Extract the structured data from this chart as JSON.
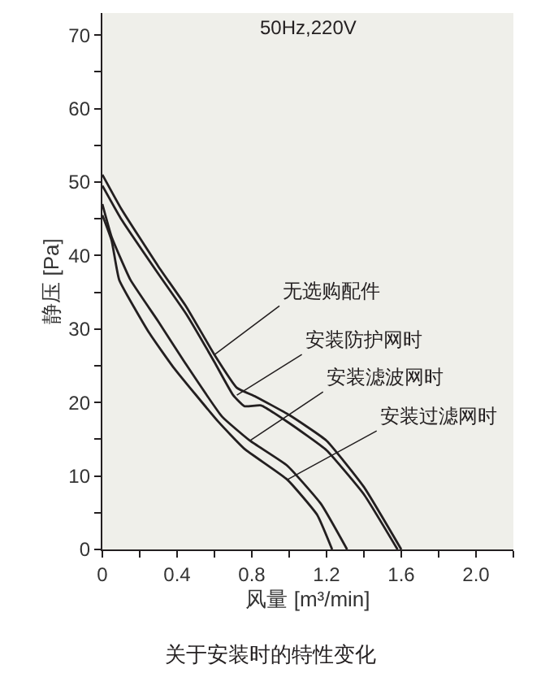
{
  "chart_data": {
    "type": "line",
    "title": "关于安装时的特性变化",
    "subtitle": "50Hz,220V",
    "xlabel": "风量 [m³/min]",
    "ylabel": "静压 [Pa]",
    "xlim": [
      0,
      2.2
    ],
    "xticks": [
      0,
      {
        "value": 0.2,
        "label": null
      },
      0.4,
      {
        "value": 0.6,
        "label": null
      },
      0.8,
      {
        "value": 1.0,
        "label": null
      },
      1.2,
      {
        "value": 1.4,
        "label": null
      },
      1.6,
      {
        "value": 1.8,
        "label": null
      },
      {
        "value": 2,
        "label": "2.0"
      },
      {
        "value": 2.2,
        "label": null
      }
    ],
    "ylim": [
      0,
      73
    ],
    "yticks": [
      0,
      {
        "value": 5,
        "label": null
      },
      10,
      {
        "value": 15,
        "label": null
      },
      20,
      {
        "value": 25,
        "label": null
      },
      30,
      {
        "value": 35,
        "label": null
      },
      40,
      {
        "value": 45,
        "label": null
      },
      50,
      {
        "value": 55,
        "label": null
      },
      60,
      {
        "value": 65,
        "label": null
      },
      70
    ],
    "grid": false,
    "marker": "none",
    "line_style": "solid",
    "series": [
      {
        "color": "#231f20",
        "x": [
          0,
          0.1,
          0.3,
          0.45,
          0.6,
          0.72,
          0.82,
          1.0,
          1.2,
          1.4,
          1.6
        ],
        "values": [
          51,
          46.4,
          38.5,
          33,
          26.5,
          22,
          20.8,
          18.3,
          14.8,
          8.5,
          0
        ]
      },
      {
        "color": "#231f20",
        "x": [
          0,
          0.1,
          0.3,
          0.45,
          0.6,
          0.7,
          0.76,
          0.85,
          1.0,
          1.2,
          1.4,
          1.58
        ],
        "values": [
          49.5,
          45,
          37.5,
          32,
          25.5,
          21,
          19.5,
          19.6,
          17.2,
          13.5,
          7.5,
          0
        ]
      },
      {
        "color": "#231f20",
        "x": [
          0,
          0.05,
          0.15,
          0.3,
          0.44,
          0.64,
          0.79,
          0.99,
          1.17,
          1.31
        ],
        "values": [
          47,
          42.5,
          36.7,
          31,
          25.5,
          18.1,
          14.8,
          11.4,
          6.2,
          0
        ]
      },
      {
        "color": "#231f20",
        "x": [
          0,
          0.05,
          0.09,
          0.25,
          0.38,
          0.62,
          0.76,
          0.99,
          1.15,
          1.23
        ],
        "values": [
          45.5,
          42,
          36.7,
          29.5,
          24.8,
          17.4,
          13.7,
          9.5,
          4.7,
          0
        ]
      }
    ],
    "annotations": [
      {
        "text": "无选购配件",
        "x": 0.6,
        "y": 26.5
      },
      {
        "text": "安装防护网时",
        "x": 0.72,
        "y": 21
      },
      {
        "text": "安装滤波网时",
        "x": 0.79,
        "y": 14.8
      },
      {
        "text": "安装过滤网时",
        "x": 0.99,
        "y": 9.5
      }
    ]
  }
}
